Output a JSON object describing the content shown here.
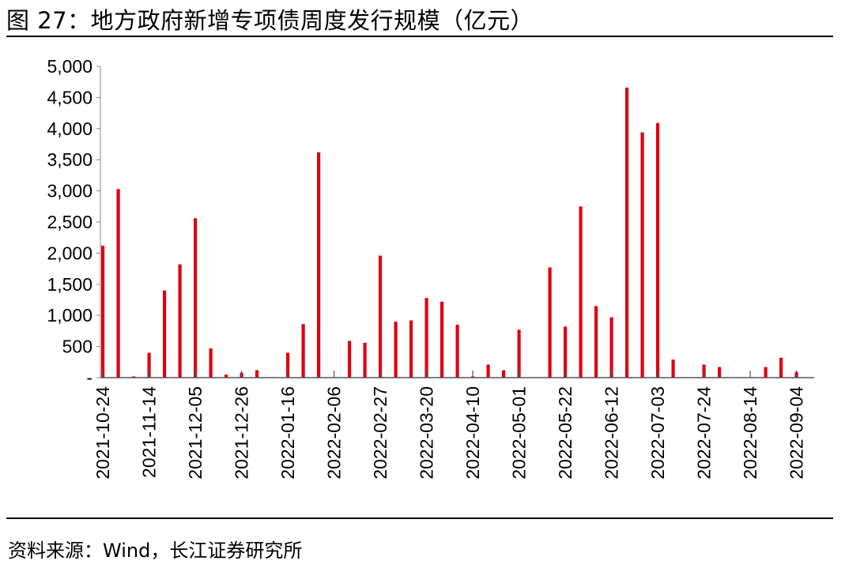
{
  "header": {
    "title": "图 27：地方政府新增专项债周度发行规模（亿元）"
  },
  "footer": {
    "source": "资料来源：Wind，长江证券研究所"
  },
  "chart_data": {
    "type": "bar",
    "title": "地方政府新增专项债周度发行规模（亿元）",
    "xlabel": "",
    "ylabel": "",
    "ylim": [
      0,
      5000
    ],
    "yticks": [
      0,
      500,
      1000,
      1500,
      2000,
      2500,
      3000,
      3500,
      4000,
      4500,
      5000
    ],
    "ytick_labels": [
      "-",
      "500",
      "1,000",
      "1,500",
      "2,000",
      "2,500",
      "3,000",
      "3,500",
      "4,000",
      "4,500",
      "5,000"
    ],
    "xtick_labels": [
      "2021-10-24",
      "2021-11-14",
      "2021-12-05",
      "2021-12-26",
      "2022-01-16",
      "2022-02-06",
      "2022-02-27",
      "2022-03-20",
      "2022-04-10",
      "2022-05-01",
      "2022-05-22",
      "2022-06-12",
      "2022-07-03",
      "2022-07-24",
      "2022-08-14",
      "2022-09-04"
    ],
    "grid": false,
    "legend": "none",
    "bar_color": "#E0000F",
    "categories": [
      "2021-10-24",
      "2021-10-31",
      "2021-11-07",
      "2021-11-14",
      "2021-11-21",
      "2021-11-28",
      "2021-12-05",
      "2021-12-12",
      "2021-12-19",
      "2021-12-26",
      "2022-01-02",
      "2022-01-09",
      "2022-01-16",
      "2022-01-23",
      "2022-01-30",
      "2022-02-06",
      "2022-02-13",
      "2022-02-20",
      "2022-02-27",
      "2022-03-06",
      "2022-03-13",
      "2022-03-20",
      "2022-03-27",
      "2022-04-03",
      "2022-04-10",
      "2022-04-17",
      "2022-04-24",
      "2022-05-01",
      "2022-05-08",
      "2022-05-15",
      "2022-05-22",
      "2022-05-29",
      "2022-06-05",
      "2022-06-12",
      "2022-06-19",
      "2022-06-26",
      "2022-07-03",
      "2022-07-10",
      "2022-07-17",
      "2022-07-24",
      "2022-07-31",
      "2022-08-07",
      "2022-08-14",
      "2022-08-21",
      "2022-08-28",
      "2022-09-04"
    ],
    "values": [
      2120,
      3030,
      20,
      400,
      1400,
      1820,
      2560,
      470,
      50,
      80,
      120,
      0,
      400,
      860,
      3620,
      0,
      590,
      560,
      1960,
      900,
      920,
      1280,
      1220,
      850,
      20,
      210,
      120,
      770,
      0,
      1770,
      820,
      2750,
      1150,
      970,
      4660,
      3940,
      4090,
      290,
      0,
      210,
      170,
      0,
      0,
      170,
      320,
      90
    ]
  }
}
